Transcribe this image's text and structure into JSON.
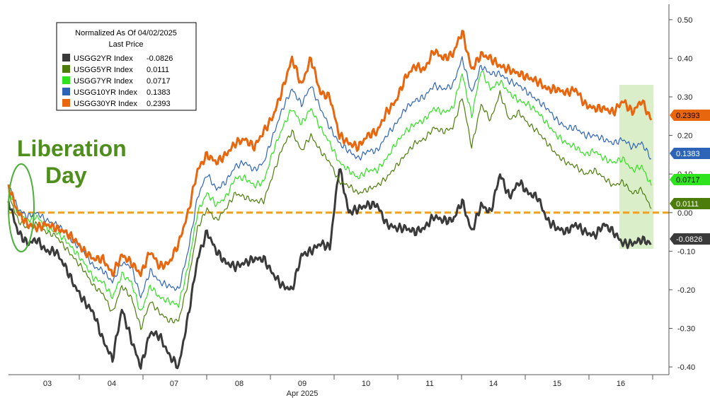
{
  "chart_data": {
    "type": "line",
    "legend": {
      "title": "Normalized As Of 04/02/2025",
      "subtitle": "Last Price",
      "placement": "top-left"
    },
    "series": [
      {
        "name": "USGG2YR Index",
        "last_price": "-0.0826",
        "color": "#3a3a3a",
        "values": [
          0.03,
          -0.05,
          -0.08,
          -0.07,
          -0.1,
          -0.1,
          -0.14,
          -0.19,
          -0.23,
          -0.26,
          -0.33,
          -0.38,
          -0.25,
          -0.33,
          -0.4,
          -0.31,
          -0.32,
          -0.37,
          -0.4,
          -0.27,
          -0.12,
          -0.05,
          -0.1,
          -0.13,
          -0.14,
          -0.13,
          -0.12,
          -0.12,
          -0.16,
          -0.19,
          -0.2,
          -0.11,
          -0.1,
          -0.08,
          -0.09,
          0.12,
          0.0,
          0.01,
          0.02,
          0.02,
          -0.03,
          -0.04,
          -0.04,
          -0.05,
          -0.04,
          -0.01,
          -0.02,
          -0.02,
          0.03,
          -0.05,
          0.02,
          0.0,
          0.1,
          0.04,
          0.08,
          0.05,
          0.04,
          -0.02,
          -0.04,
          -0.05,
          -0.03,
          -0.05,
          -0.06,
          -0.03,
          -0.05,
          -0.08,
          -0.08,
          -0.07,
          -0.08
        ]
      },
      {
        "name": "USGG5YR Index",
        "last_price": "0.0111",
        "color": "#4c7d0a",
        "values": [
          0.05,
          -0.02,
          -0.04,
          -0.03,
          -0.05,
          -0.06,
          -0.09,
          -0.12,
          -0.15,
          -0.19,
          -0.21,
          -0.26,
          -0.19,
          -0.22,
          -0.3,
          -0.23,
          -0.26,
          -0.28,
          -0.28,
          -0.18,
          -0.04,
          0.01,
          -0.02,
          0.01,
          0.05,
          0.04,
          0.03,
          0.03,
          0.1,
          0.17,
          0.21,
          0.16,
          0.2,
          0.16,
          0.13,
          0.08,
          0.07,
          0.05,
          0.06,
          0.07,
          0.09,
          0.12,
          0.15,
          0.18,
          0.19,
          0.22,
          0.21,
          0.22,
          0.3,
          0.17,
          0.28,
          0.24,
          0.31,
          0.24,
          0.26,
          0.23,
          0.21,
          0.18,
          0.15,
          0.13,
          0.12,
          0.1,
          0.11,
          0.09,
          0.07,
          0.08,
          0.05,
          0.06,
          0.01
        ]
      },
      {
        "name": "USGG7YR Index",
        "last_price": "0.0717",
        "color": "#2fe31f",
        "values": [
          0.06,
          0.0,
          -0.02,
          -0.01,
          -0.04,
          -0.05,
          -0.07,
          -0.1,
          -0.13,
          -0.17,
          -0.18,
          -0.22,
          -0.16,
          -0.18,
          -0.26,
          -0.19,
          -0.22,
          -0.23,
          -0.24,
          -0.14,
          0.0,
          0.05,
          0.02,
          0.04,
          0.09,
          0.09,
          0.07,
          0.08,
          0.16,
          0.22,
          0.27,
          0.23,
          0.27,
          0.22,
          0.18,
          0.13,
          0.11,
          0.09,
          0.11,
          0.11,
          0.14,
          0.18,
          0.21,
          0.23,
          0.24,
          0.27,
          0.26,
          0.27,
          0.36,
          0.25,
          0.37,
          0.32,
          0.34,
          0.31,
          0.29,
          0.28,
          0.26,
          0.23,
          0.2,
          0.18,
          0.17,
          0.15,
          0.16,
          0.14,
          0.13,
          0.14,
          0.11,
          0.12,
          0.07
        ]
      },
      {
        "name": "USGG10YR Index",
        "last_price": "0.1383",
        "color": "#2e64b8",
        "values": [
          0.07,
          0.01,
          -0.01,
          0.0,
          -0.02,
          -0.03,
          -0.05,
          -0.08,
          -0.1,
          -0.14,
          -0.15,
          -0.18,
          -0.13,
          -0.14,
          -0.22,
          -0.15,
          -0.18,
          -0.19,
          -0.2,
          -0.1,
          0.04,
          0.1,
          0.06,
          0.08,
          0.12,
          0.13,
          0.11,
          0.13,
          0.2,
          0.27,
          0.32,
          0.28,
          0.33,
          0.27,
          0.22,
          0.18,
          0.16,
          0.14,
          0.16,
          0.16,
          0.2,
          0.23,
          0.27,
          0.29,
          0.3,
          0.33,
          0.32,
          0.33,
          0.4,
          0.31,
          0.38,
          0.36,
          0.36,
          0.34,
          0.33,
          0.31,
          0.29,
          0.27,
          0.24,
          0.22,
          0.22,
          0.2,
          0.2,
          0.19,
          0.18,
          0.19,
          0.17,
          0.18,
          0.14
        ]
      },
      {
        "name": "USGG30YR Index",
        "last_price": "0.2393",
        "color": "#e8660e",
        "values": [
          0.07,
          0.0,
          -0.03,
          -0.04,
          -0.03,
          -0.04,
          -0.05,
          -0.07,
          -0.1,
          -0.12,
          -0.12,
          -0.16,
          -0.11,
          -0.13,
          -0.16,
          -0.1,
          -0.14,
          -0.13,
          -0.08,
          0.0,
          0.11,
          0.15,
          0.13,
          0.15,
          0.18,
          0.19,
          0.17,
          0.21,
          0.25,
          0.32,
          0.4,
          0.33,
          0.4,
          0.31,
          0.3,
          0.2,
          0.18,
          0.17,
          0.2,
          0.21,
          0.26,
          0.29,
          0.35,
          0.38,
          0.37,
          0.42,
          0.4,
          0.41,
          0.47,
          0.37,
          0.41,
          0.4,
          0.38,
          0.37,
          0.36,
          0.35,
          0.34,
          0.32,
          0.32,
          0.31,
          0.32,
          0.28,
          0.27,
          0.27,
          0.26,
          0.29,
          0.26,
          0.29,
          0.24
        ]
      }
    ],
    "x_labels": [
      "03",
      "04",
      "07",
      "08",
      "09",
      "10",
      "11",
      "14",
      "15",
      "16"
    ],
    "x_month_label": "Apr 2025",
    "y_ticks": [
      "0.50",
      "0.40",
      "0.30",
      "0.20",
      "0.10",
      "0.00",
      "-0.10",
      "-0.20",
      "-0.30",
      "-0.40"
    ],
    "ylim": [
      -0.42,
      0.54
    ],
    "grid": "none",
    "reference_line": {
      "value": 0.0,
      "color": "#f0a020",
      "style": "dashed"
    },
    "annotation": {
      "line1": "Liberation",
      "line2": "Day",
      "color": "#4e8f1c"
    },
    "highlight_color": "#cfe8b8"
  }
}
